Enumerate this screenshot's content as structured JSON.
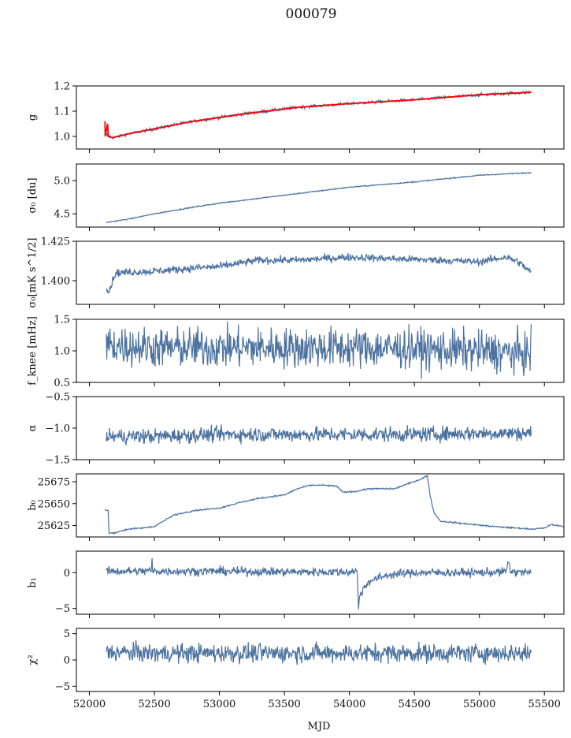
{
  "figure": {
    "title": "000079",
    "xlabel": "MJD"
  },
  "colors": {
    "series": "#4c72a0",
    "model": "#ff0000",
    "axes": "#000000"
  },
  "chart_data": [
    {
      "type": "line",
      "title": "",
      "ylabel": "g",
      "xlim": [
        51900,
        55650
      ],
      "ylim": [
        0.95,
        1.2
      ],
      "yticks": [
        1.0,
        1.1,
        1.2
      ],
      "ytick_labels": [
        "1.0",
        "1.1",
        "1.2"
      ],
      "series": [
        {
          "style": "data",
          "noise": 0.003,
          "points": [
            [
              52120,
              1.01
            ],
            [
              52180,
              0.995
            ],
            [
              52300,
              1.01
            ],
            [
              52500,
              1.03
            ],
            [
              52800,
              1.06
            ],
            [
              53200,
              1.09
            ],
            [
              53600,
              1.115
            ],
            [
              54000,
              1.13
            ],
            [
              54500,
              1.145
            ],
            [
              55000,
              1.165
            ],
            [
              55400,
              1.175
            ]
          ]
        },
        {
          "style": "model",
          "points": [
            [
              52120,
              1.06
            ],
            [
              52122,
              1.0
            ],
            [
              52140,
              1.05
            ],
            [
              52145,
              1.0
            ],
            [
              52160,
              0.997
            ],
            [
              52180,
              0.995
            ],
            [
              52300,
              1.01
            ],
            [
              52500,
              1.03
            ],
            [
              52800,
              1.06
            ],
            [
              53200,
              1.09
            ],
            [
              53600,
              1.115
            ],
            [
              54000,
              1.13
            ],
            [
              54500,
              1.145
            ],
            [
              55000,
              1.165
            ],
            [
              55400,
              1.175
            ]
          ]
        }
      ]
    },
    {
      "type": "line",
      "title": "",
      "ylabel": "σ₀ [du]",
      "xlim": [
        51900,
        55650
      ],
      "ylim": [
        4.3,
        5.25
      ],
      "yticks": [
        4.5,
        5.0
      ],
      "ytick_labels": [
        "4.5",
        "5.0"
      ],
      "series": [
        {
          "style": "data",
          "noise": 0.004,
          "points": [
            [
              52130,
              4.37
            ],
            [
              52300,
              4.42
            ],
            [
              52500,
              4.5
            ],
            [
              52800,
              4.6
            ],
            [
              53000,
              4.66
            ],
            [
              53500,
              4.78
            ],
            [
              54000,
              4.9
            ],
            [
              54500,
              4.98
            ],
            [
              55000,
              5.08
            ],
            [
              55400,
              5.12
            ]
          ]
        }
      ]
    },
    {
      "type": "line",
      "title": "",
      "ylabel": "σ₀[mK s^1/2]",
      "xlim": [
        51900,
        55650
      ],
      "ylim": [
        1.385,
        1.425
      ],
      "yticks": [
        1.4,
        1.425
      ],
      "ytick_labels": [
        "1.400",
        "1.425"
      ],
      "series": [
        {
          "style": "data",
          "noise": 0.0012,
          "points": [
            [
              52130,
              1.396
            ],
            [
              52150,
              1.393
            ],
            [
              52200,
              1.405
            ],
            [
              52500,
              1.406
            ],
            [
              52800,
              1.408
            ],
            [
              53000,
              1.409
            ],
            [
              53300,
              1.413
            ],
            [
              53600,
              1.413
            ],
            [
              54000,
              1.415
            ],
            [
              54300,
              1.414
            ],
            [
              54700,
              1.413
            ],
            [
              55000,
              1.412
            ],
            [
              55200,
              1.415
            ],
            [
              55300,
              1.412
            ],
            [
              55400,
              1.405
            ]
          ]
        }
      ]
    },
    {
      "type": "line",
      "title": "",
      "ylabel": "f_knee [mHz]",
      "xlim": [
        51900,
        55650
      ],
      "ylim": [
        0.5,
        1.5
      ],
      "yticks": [
        0.5,
        1.0,
        1.5
      ],
      "ytick_labels": [
        "0.5",
        "1.0",
        "1.5"
      ],
      "series": [
        {
          "style": "data",
          "noise": 0.16,
          "points": [
            [
              52130,
              1.1
            ],
            [
              52500,
              1.05
            ],
            [
              53000,
              1.05
            ],
            [
              53500,
              1.05
            ],
            [
              54000,
              1.05
            ],
            [
              54500,
              1.03
            ],
            [
              55000,
              1.0
            ],
            [
              55400,
              0.95
            ]
          ]
        }
      ]
    },
    {
      "type": "line",
      "title": "",
      "ylabel": "α",
      "xlim": [
        51900,
        55650
      ],
      "ylim": [
        -1.5,
        -0.5
      ],
      "yticks": [
        -1.5,
        -1.0,
        -0.5
      ],
      "ytick_labels": [
        "−1.5",
        "−1.0",
        "−0.5"
      ],
      "series": [
        {
          "style": "data",
          "noise": 0.06,
          "points": [
            [
              52130,
              -1.13
            ],
            [
              52500,
              -1.13
            ],
            [
              53000,
              -1.1
            ],
            [
              53500,
              -1.1
            ],
            [
              54000,
              -1.1
            ],
            [
              54500,
              -1.1
            ],
            [
              55000,
              -1.08
            ],
            [
              55400,
              -1.08
            ]
          ]
        }
      ]
    },
    {
      "type": "line",
      "title": "",
      "ylabel": "b₀",
      "xlim": [
        51900,
        55650
      ],
      "ylim": [
        25612,
        25684
      ],
      "yticks": [
        25625,
        25650,
        25675
      ],
      "ytick_labels": [
        "25625",
        "25650",
        "25675"
      ],
      "series": [
        {
          "style": "data",
          "noise": 0.4,
          "points": [
            [
              52120,
              25643
            ],
            [
              52145,
              25642
            ],
            [
              52150,
              25616
            ],
            [
              52200,
              25617
            ],
            [
              52300,
              25621
            ],
            [
              52400,
              25622
            ],
            [
              52500,
              25624
            ],
            [
              52650,
              25637
            ],
            [
              52800,
              25642
            ],
            [
              53000,
              25645
            ],
            [
              53150,
              25651
            ],
            [
              53300,
              25656
            ],
            [
              53500,
              25660
            ],
            [
              53600,
              25667
            ],
            [
              53700,
              25671
            ],
            [
              53800,
              25671
            ],
            [
              53900,
              25670
            ],
            [
              53950,
              25663
            ],
            [
              54050,
              25664
            ],
            [
              54150,
              25667
            ],
            [
              54350,
              25667
            ],
            [
              54400,
              25670
            ],
            [
              54550,
              25678
            ],
            [
              54600,
              25682
            ],
            [
              54620,
              25660
            ],
            [
              54650,
              25640
            ],
            [
              54700,
              25630
            ],
            [
              54900,
              25627
            ],
            [
              55100,
              25624
            ],
            [
              55300,
              25622
            ],
            [
              55400,
              25621
            ],
            [
              55500,
              25622
            ],
            [
              55550,
              25626
            ],
            [
              55650,
              25624
            ],
            [
              55700,
              25622
            ]
          ]
        }
      ]
    },
    {
      "type": "line",
      "title": "",
      "ylabel": "b₁",
      "xlim": [
        51900,
        55650
      ],
      "ylim": [
        -5.8,
        3.0
      ],
      "yticks": [
        -5,
        0
      ],
      "ytick_labels": [
        "−5",
        "0"
      ],
      "series": [
        {
          "style": "data",
          "noise": 0.3,
          "points": [
            [
              52130,
              0.2
            ],
            [
              52400,
              0.2
            ],
            [
              52480,
              0.3
            ],
            [
              52483,
              2.8
            ],
            [
              52486,
              0.2
            ],
            [
              53000,
              0.2
            ],
            [
              53500,
              0.1
            ],
            [
              54000,
              0.1
            ],
            [
              54060,
              0.3
            ],
            [
              54070,
              -5.2
            ],
            [
              54080,
              -3.0
            ],
            [
              54150,
              -1.2
            ],
            [
              54300,
              -0.3
            ],
            [
              54500,
              0.0
            ],
            [
              55000,
              0.0
            ],
            [
              55200,
              0.1
            ],
            [
              55230,
              1.5
            ],
            [
              55240,
              0.1
            ],
            [
              55400,
              0.0
            ]
          ]
        }
      ]
    },
    {
      "type": "line",
      "title": "",
      "ylabel": "χ²",
      "xlim": [
        51900,
        55650
      ],
      "ylim": [
        -6,
        6
      ],
      "yticks": [
        -5,
        0,
        5
      ],
      "ytick_labels": [
        "−5",
        "0",
        "5"
      ],
      "xticks": [
        52000,
        52500,
        53000,
        53500,
        54000,
        54500,
        55000,
        55500
      ],
      "xtick_labels": [
        "52000",
        "52500",
        "53000",
        "53500",
        "54000",
        "54500",
        "55000",
        "55500"
      ],
      "series": [
        {
          "style": "data",
          "noise": 0.9,
          "points": [
            [
              52130,
              1.5
            ],
            [
              52500,
              1.3
            ],
            [
              53000,
              1.3
            ],
            [
              53500,
              1.3
            ],
            [
              54000,
              1.3
            ],
            [
              54500,
              1.3
            ],
            [
              55000,
              1.3
            ],
            [
              55400,
              1.3
            ]
          ]
        }
      ]
    }
  ]
}
